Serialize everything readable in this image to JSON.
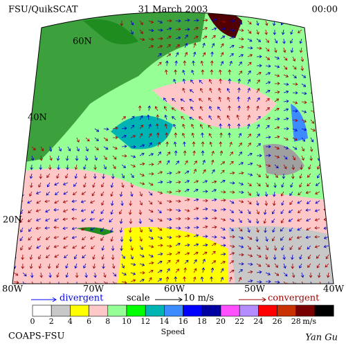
{
  "header": {
    "left": "FSU/QuikSCAT",
    "center": "31 March 2003",
    "right": "00:00"
  },
  "map": {
    "lat_labels": [
      "60N",
      "40N",
      "20N"
    ],
    "lon_labels": [
      "80W",
      "70W",
      "60W",
      "50W",
      "40W"
    ]
  },
  "legend": {
    "divergent": "divergent",
    "scale": "scale",
    "scale_value": "10 m/s",
    "convergent": "convergent"
  },
  "colorbar": {
    "colors": [
      "#ffffff",
      "#c8c8c8",
      "#ffff00",
      "#ffc8c8",
      "#96ff96",
      "#00ff00",
      "#00b4b4",
      "#3c8cff",
      "#0000ff",
      "#0000a0",
      "#ff50ff",
      "#b48cff",
      "#ff0000",
      "#c83200",
      "#780000",
      "#000000"
    ],
    "ticks": [
      "0",
      "2",
      "4",
      "6",
      "8",
      "10",
      "12",
      "14",
      "16",
      "18",
      "20",
      "22",
      "24",
      "26",
      "28"
    ],
    "unit": "m/s",
    "title": "Speed"
  },
  "footer": {
    "left": "COAPS-FSU",
    "right": "Yan Gu"
  }
}
